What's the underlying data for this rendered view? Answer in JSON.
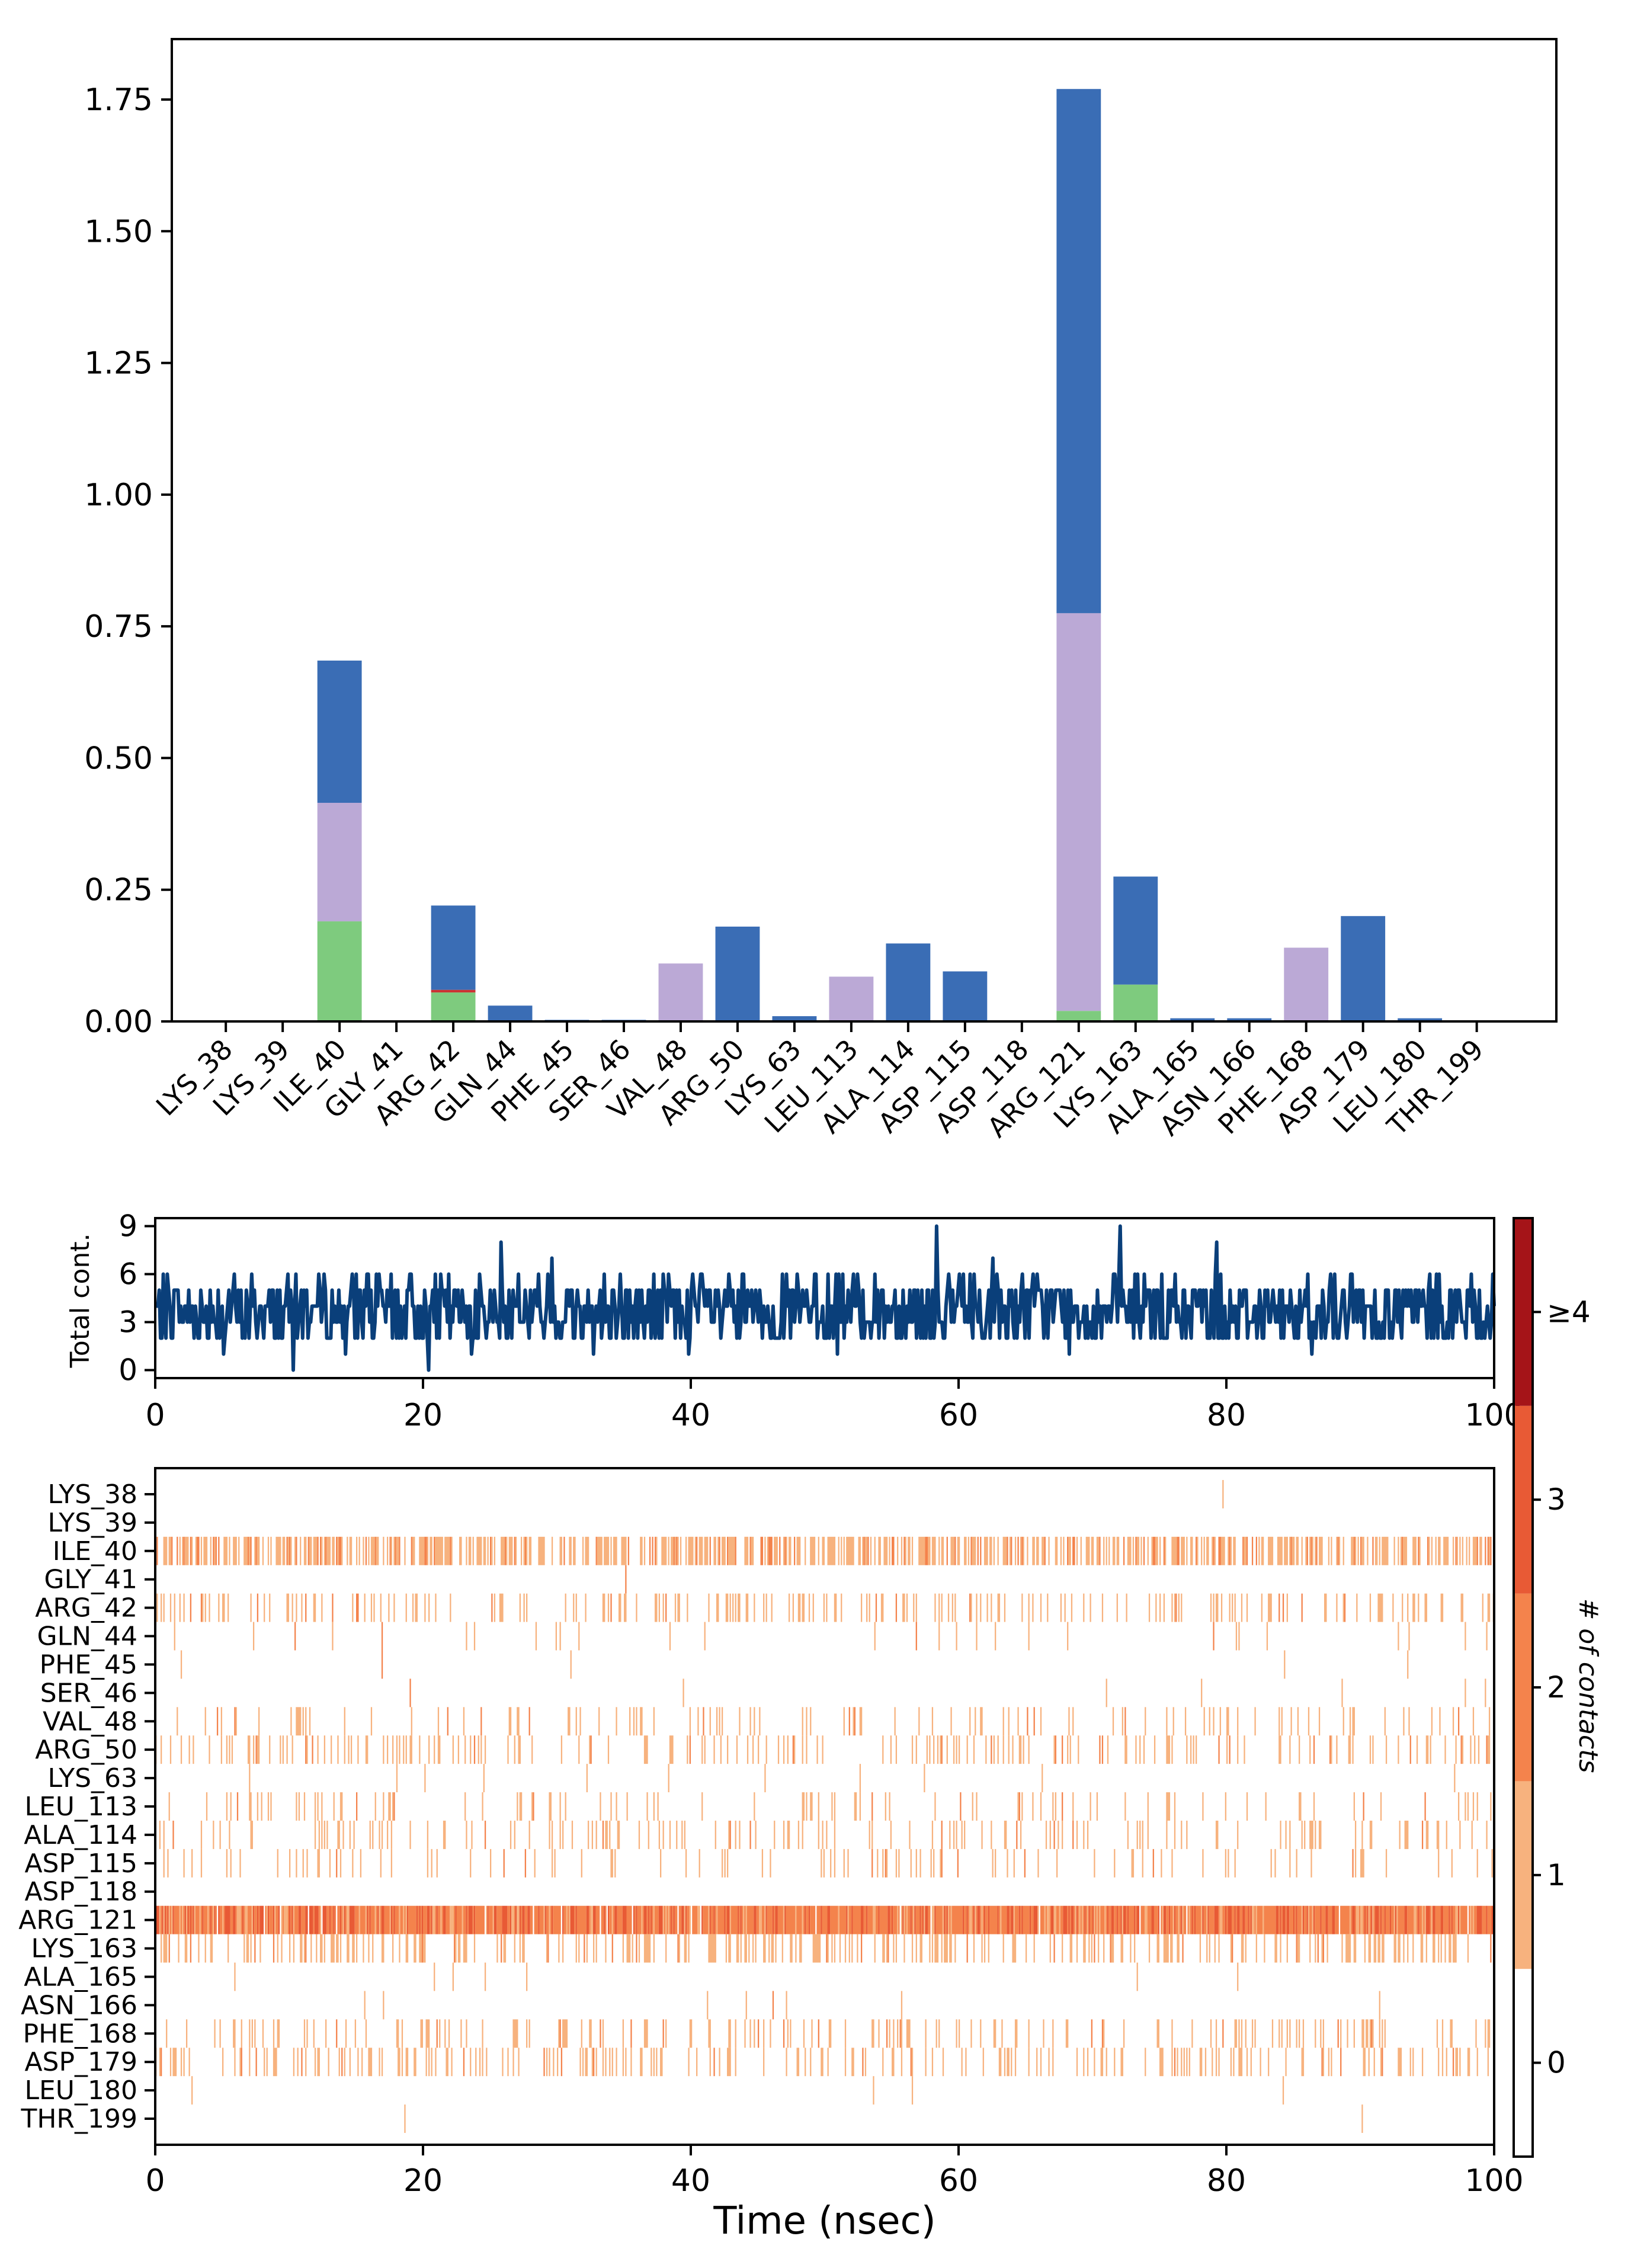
{
  "chart_data": [
    {
      "type": "bar",
      "stacked": true,
      "categories": [
        "LYS_38",
        "LYS_39",
        "ILE_40",
        "GLY_41",
        "ARG_42",
        "GLN_44",
        "PHE_45",
        "SER_46",
        "VAL_48",
        "ARG_50",
        "LYS_63",
        "LEU_113",
        "ALA_114",
        "ASP_115",
        "ASP_118",
        "ARG_121",
        "LYS_163",
        "ALA_165",
        "ASN_166",
        "PHE_168",
        "ASP_179",
        "LEU_180",
        "THR_199"
      ],
      "series": [
        {
          "color": "#7ecb7e",
          "values": [
            0,
            0,
            0.19,
            0,
            0.055,
            0,
            0,
            0,
            0,
            0,
            0,
            0,
            0,
            0,
            0,
            0.02,
            0.07,
            0,
            0,
            0,
            0,
            0,
            0
          ]
        },
        {
          "color": "#cc3333",
          "values": [
            0,
            0,
            0,
            0,
            0.005,
            0,
            0,
            0,
            0,
            0,
            0,
            0,
            0,
            0,
            0,
            0,
            0,
            0,
            0,
            0,
            0,
            0,
            0
          ]
        },
        {
          "color": "#bba9d6",
          "values": [
            0,
            0,
            0.225,
            0,
            0,
            0,
            0,
            0,
            0.11,
            0,
            0,
            0.085,
            0,
            0,
            0,
            0.755,
            0,
            0,
            0,
            0.14,
            0,
            0,
            0
          ]
        },
        {
          "color": "#3a6db5",
          "values": [
            0,
            0,
            0.27,
            0,
            0.16,
            0.03,
            0.003,
            0.003,
            0,
            0.18,
            0.01,
            0,
            0.148,
            0.095,
            0,
            0.995,
            0.205,
            0.006,
            0.006,
            0,
            0.2,
            0.006,
            0
          ]
        }
      ],
      "ylim": [
        0,
        1.85
      ],
      "yticks": [
        "0.00",
        "0.25",
        "0.50",
        "0.75",
        "1.00",
        "1.25",
        "1.50",
        "1.75"
      ],
      "ytick_values": [
        0,
        0.25,
        0.5,
        0.75,
        1.0,
        1.25,
        1.5,
        1.75
      ]
    },
    {
      "type": "line",
      "ylabel": "Total cont.",
      "color": "#0a3f7a",
      "xlim": [
        0,
        100
      ],
      "ylim": [
        -0.5,
        9.5
      ],
      "xticks": [
        "0",
        "20",
        "40",
        "60",
        "80",
        "100"
      ],
      "xtick_values": [
        0,
        20,
        40,
        60,
        80,
        100
      ],
      "yticks": [
        "0",
        "3",
        "6",
        "9"
      ],
      "ytick_values": [
        0,
        3,
        6,
        9
      ],
      "n_points": 1000,
      "mean": 3.7
    },
    {
      "type": "heatmap",
      "xlabel": "Time (nsec)",
      "xlim": [
        0,
        100
      ],
      "xticks": [
        "0",
        "20",
        "40",
        "60",
        "80",
        "100"
      ],
      "xtick_values": [
        0,
        20,
        40,
        60,
        80,
        100
      ],
      "rows": [
        {
          "label": "LYS_38",
          "density": 0.002
        },
        {
          "label": "LYS_39",
          "density": 0.002
        },
        {
          "label": "ILE_40",
          "density": 0.55
        },
        {
          "label": "GLY_41",
          "density": 0.003
        },
        {
          "label": "ARG_42",
          "density": 0.18
        },
        {
          "label": "GLN_44",
          "density": 0.03
        },
        {
          "label": "PHE_45",
          "density": 0.004
        },
        {
          "label": "SER_46",
          "density": 0.004
        },
        {
          "label": "VAL_48",
          "density": 0.11
        },
        {
          "label": "ARG_50",
          "density": 0.18
        },
        {
          "label": "LYS_63",
          "density": 0.01
        },
        {
          "label": "LEU_113",
          "density": 0.085
        },
        {
          "label": "ALA_114",
          "density": 0.15
        },
        {
          "label": "ASP_115",
          "density": 0.095
        },
        {
          "label": "ASP_118",
          "density": 0.0
        },
        {
          "label": "ARG_121",
          "density": 0.98
        },
        {
          "label": "LYS_163",
          "density": 0.28
        },
        {
          "label": "ALA_165",
          "density": 0.006
        },
        {
          "label": "ASN_166",
          "density": 0.006
        },
        {
          "label": "PHE_168",
          "density": 0.14
        },
        {
          "label": "ASP_179",
          "density": 0.2
        },
        {
          "label": "LEU_180",
          "density": 0.006
        },
        {
          "label": "THR_199",
          "density": 0.001
        }
      ],
      "colorbar": {
        "label": "# of contacts",
        "ticks": [
          "0",
          "1",
          "2",
          "3",
          "≥4"
        ],
        "colors": [
          "#ffffff",
          "#f7b27e",
          "#f4834c",
          "#e85a35",
          "#a51418"
        ]
      }
    }
  ]
}
